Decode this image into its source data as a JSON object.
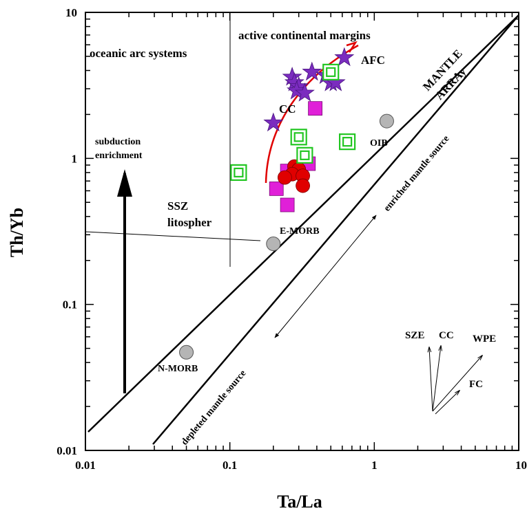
{
  "chart_data": {
    "type": "scatter",
    "xscale": "log",
    "yscale": "log",
    "xlim": [
      0.01,
      10
    ],
    "ylim": [
      0.01,
      10
    ],
    "xlabel": "Ta/La",
    "ylabel": "Th/Yb",
    "x_ticks": [
      {
        "value": 0.01,
        "label": "0.01"
      },
      {
        "value": 0.1,
        "label": "0.1"
      },
      {
        "value": 1,
        "label": "1"
      },
      {
        "value": 10,
        "label": "10"
      }
    ],
    "y_ticks": [
      {
        "value": 0.01,
        "label": "0.01"
      },
      {
        "value": 0.1,
        "label": "0.1"
      },
      {
        "value": 1,
        "label": "1"
      },
      {
        "value": 10,
        "label": "10"
      }
    ],
    "regions": {
      "oceanic_arc": "oceanic arc systems",
      "active_margins": "active continental margins",
      "ssz_1": "SSZ",
      "ssz_2": "litospher",
      "mantle_1": "MANTLE",
      "mantle_2": "ARRAy",
      "enriched": "enriched mantle source",
      "depleted": "depleted mantle source",
      "subduction_1": "subduction",
      "subduction_2": "enrichment",
      "afc": "AFC",
      "cc": "CC"
    },
    "reference_points": [
      {
        "label": "N-MORB",
        "x": 0.05,
        "y": 0.047
      },
      {
        "label": "E-MORB",
        "x": 0.2,
        "y": 0.26
      },
      {
        "label": "OIB",
        "x": 1.22,
        "y": 1.8
      }
    ],
    "series": [
      {
        "marker": "star",
        "color": "#7b2cbf",
        "points": [
          {
            "x": 0.27,
            "y": 3.6
          },
          {
            "x": 0.28,
            "y": 3.3
          },
          {
            "x": 0.3,
            "y": 3.1
          },
          {
            "x": 0.29,
            "y": 2.9
          },
          {
            "x": 0.33,
            "y": 2.8
          },
          {
            "x": 0.37,
            "y": 3.9
          },
          {
            "x": 0.46,
            "y": 3.7
          },
          {
            "x": 0.5,
            "y": 3.3
          },
          {
            "x": 0.54,
            "y": 3.3
          },
          {
            "x": 0.62,
            "y": 4.9
          },
          {
            "x": 0.2,
            "y": 1.75
          }
        ]
      },
      {
        "marker": "filled-square",
        "color": "#e020d8",
        "points": [
          {
            "x": 0.39,
            "y": 2.2
          },
          {
            "x": 0.35,
            "y": 0.92
          },
          {
            "x": 0.25,
            "y": 0.82
          },
          {
            "x": 0.21,
            "y": 0.62
          },
          {
            "x": 0.25,
            "y": 0.48
          }
        ]
      },
      {
        "marker": "circle",
        "color": "#e00000",
        "points": [
          {
            "x": 0.28,
            "y": 0.88
          },
          {
            "x": 0.3,
            "y": 0.84
          },
          {
            "x": 0.27,
            "y": 0.78
          },
          {
            "x": 0.24,
            "y": 0.74
          },
          {
            "x": 0.32,
            "y": 0.76
          },
          {
            "x": 0.32,
            "y": 0.65
          }
        ]
      },
      {
        "marker": "open-square",
        "color": "#22c622",
        "points": [
          {
            "x": 0.115,
            "y": 0.8
          },
          {
            "x": 0.3,
            "y": 1.4
          },
          {
            "x": 0.33,
            "y": 1.05
          },
          {
            "x": 0.65,
            "y": 1.3
          },
          {
            "x": 0.5,
            "y": 3.9
          }
        ]
      }
    ],
    "vectors_labels": {
      "sze": "SZE",
      "cc": "CC",
      "wpe": "WPE",
      "fc": "FC"
    },
    "colors": {
      "axes": "#000000",
      "trend": "#e00000",
      "reference": "#b5b5b5"
    }
  }
}
